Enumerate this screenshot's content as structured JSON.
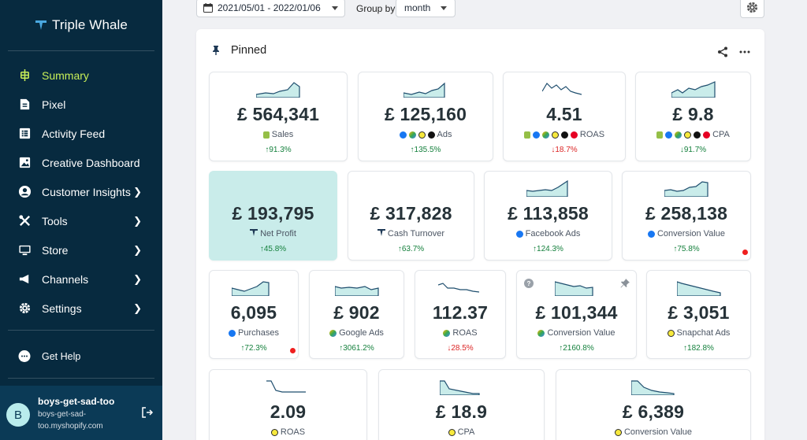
{
  "brand": {
    "name": "Triple Whale"
  },
  "nav": [
    {
      "label": "Summary",
      "icon": "summary-icon",
      "active": true,
      "chevron": false
    },
    {
      "label": "Pixel",
      "icon": "pixel-icon",
      "active": false,
      "chevron": false
    },
    {
      "label": "Activity Feed",
      "icon": "activity-feed-icon",
      "active": false,
      "chevron": false
    },
    {
      "label": "Creative Dashboard",
      "icon": "image-icon",
      "active": false,
      "chevron": false
    },
    {
      "label": "Customer Insights",
      "icon": "user-circle-icon",
      "active": false,
      "chevron": true
    },
    {
      "label": "Tools",
      "icon": "tools-icon",
      "active": false,
      "chevron": true
    },
    {
      "label": "Store",
      "icon": "store-icon",
      "active": false,
      "chevron": true
    },
    {
      "label": "Channels",
      "icon": "megaphone-icon",
      "active": false,
      "chevron": true
    },
    {
      "label": "Settings",
      "icon": "gear-icon",
      "active": false,
      "chevron": true
    }
  ],
  "help": {
    "label": "Get Help"
  },
  "user": {
    "initial": "B",
    "name": "boys-get-sad-too",
    "shop": "boys-get-sad-too.myshopify.com"
  },
  "toolbar": {
    "date_range": "2021/05/01 - 2022/01/06",
    "groupby_label": "Group by",
    "groupby_value": "month"
  },
  "panel": {
    "title": "Pinned"
  },
  "colors": {
    "sidebar": "#072a3f",
    "active_nav": "#c8ef58",
    "highlight_card": "#c9ecea",
    "positive": "#15803d",
    "negative": "#dc2626"
  },
  "cards": [
    {
      "value": "£ 564,341",
      "label": "Sales",
      "change": "↑91.3%",
      "dir": "up",
      "badges": [
        "shopify"
      ]
    },
    {
      "value": "£ 125,160",
      "label": "Ads",
      "change": "↑135.5%",
      "dir": "up",
      "badges": [
        "facebook",
        "google",
        "snapchat",
        "tiktok"
      ]
    },
    {
      "value": "4.51",
      "label": "ROAS",
      "change": "↓18.7%",
      "dir": "down",
      "badges": [
        "shopify",
        "facebook",
        "google",
        "snapchat",
        "tiktok",
        "pinterest"
      ]
    },
    {
      "value": "£ 9.8",
      "label": "CPA",
      "change": "↓91.7%",
      "dir": "up",
      "badges": [
        "shopify",
        "facebook",
        "google",
        "snapchat",
        "tiktok",
        "pinterest"
      ]
    },
    {
      "value": "£ 193,795",
      "label": "Net Profit",
      "change": "↑45.8%",
      "dir": "up",
      "badges": [
        "triplewhale"
      ]
    },
    {
      "value": "£ 317,828",
      "label": "Cash Turnover",
      "change": "↑63.7%",
      "dir": "up",
      "badges": [
        "triplewhale"
      ]
    },
    {
      "value": "£ 113,858",
      "label": "Facebook Ads",
      "change": "↑124.3%",
      "dir": "up",
      "badges": [
        "facebook"
      ]
    },
    {
      "value": "£ 258,138",
      "label": "Conversion Value",
      "change": "↑75.8%",
      "dir": "up",
      "badges": [
        "facebook"
      ]
    },
    {
      "value": "6,095",
      "label": "Purchases",
      "change": "↑72.3%",
      "dir": "up",
      "badges": [
        "facebook"
      ]
    },
    {
      "value": "£ 902",
      "label": "Google Ads",
      "change": "↑3061.2%",
      "dir": "up",
      "badges": [
        "google"
      ]
    },
    {
      "value": "112.37",
      "label": "ROAS",
      "change": "↓28.5%",
      "dir": "down",
      "badges": [
        "google"
      ]
    },
    {
      "value": "£ 101,344",
      "label": "Conversion Value",
      "change": "↑2160.8%",
      "dir": "up",
      "badges": [
        "google"
      ]
    },
    {
      "value": "£ 3,051",
      "label": "Snapchat Ads",
      "change": "↑182.8%",
      "dir": "up",
      "badges": [
        "snapchat"
      ]
    },
    {
      "value": "2.09",
      "label": "ROAS",
      "change": "",
      "dir": "up",
      "badges": [
        "snapchat"
      ]
    },
    {
      "value": "£ 18.9",
      "label": "CPA",
      "change": "",
      "dir": "up",
      "badges": [
        "snapchat"
      ]
    },
    {
      "value": "£ 6,389",
      "label": "Conversion Value",
      "change": "",
      "dir": "up",
      "badges": [
        "snapchat"
      ]
    }
  ]
}
